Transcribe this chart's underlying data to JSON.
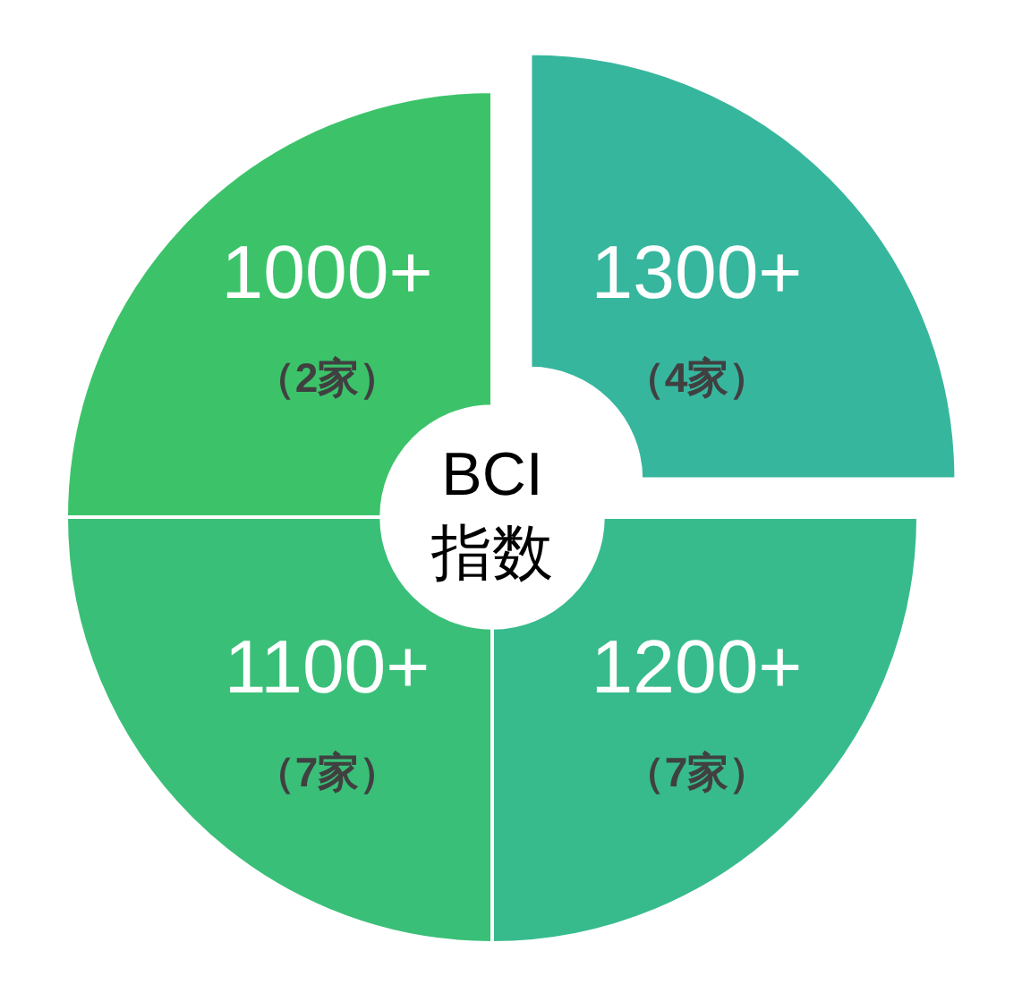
{
  "chart_data": {
    "type": "donut",
    "title": "BCI 指数",
    "categories": [
      "1300+\n（4家）",
      "1200+\n（7家）",
      "1100+\n（7家）",
      "1000+\n（2家）"
    ],
    "values": [
      25,
      25,
      25,
      25
    ],
    "colors": [
      "#37b69e",
      "#37bb8d",
      "#3abf78",
      "#3cc36a"
    ],
    "legend": false
  }
}
